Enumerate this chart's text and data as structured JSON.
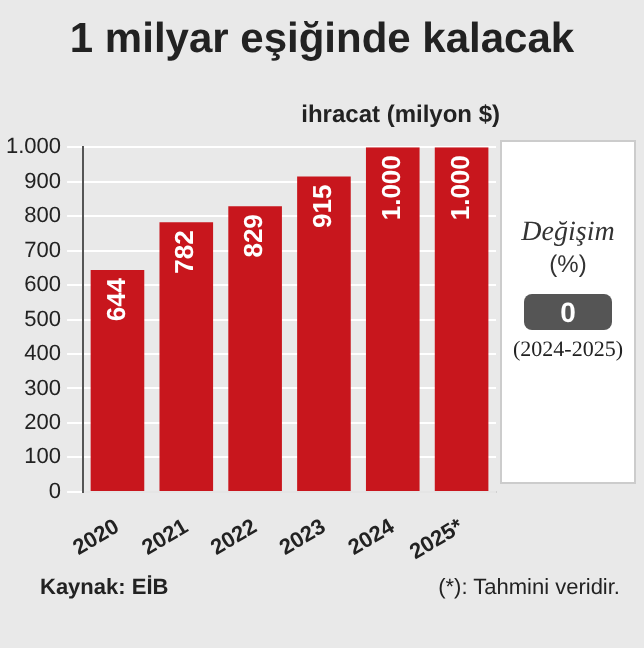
{
  "chart_data": {
    "type": "bar",
    "title": "1 milyar eşiğinde kalacak",
    "ylabel": "ihracat (milyon $)",
    "categories": [
      "2020",
      "2021",
      "2022",
      "2023",
      "2024",
      "2025*"
    ],
    "values": [
      644,
      782,
      829,
      915,
      1000,
      1000
    ],
    "value_labels": [
      "644",
      "782",
      "829",
      "915",
      "1.000",
      "1.000"
    ],
    "color": "#c8161d",
    "ylim": [
      0,
      1000
    ],
    "yticks": [
      0,
      100,
      200,
      300,
      400,
      500,
      600,
      700,
      800,
      900,
      {
        "value": 1000,
        "label": "1.000"
      }
    ],
    "grid": "y",
    "annotations": [
      "Değişim",
      "(%)",
      "0",
      "(2024-2025)",
      "Kaynak: EİB",
      "(*): Tahmini veridir."
    ]
  }
}
